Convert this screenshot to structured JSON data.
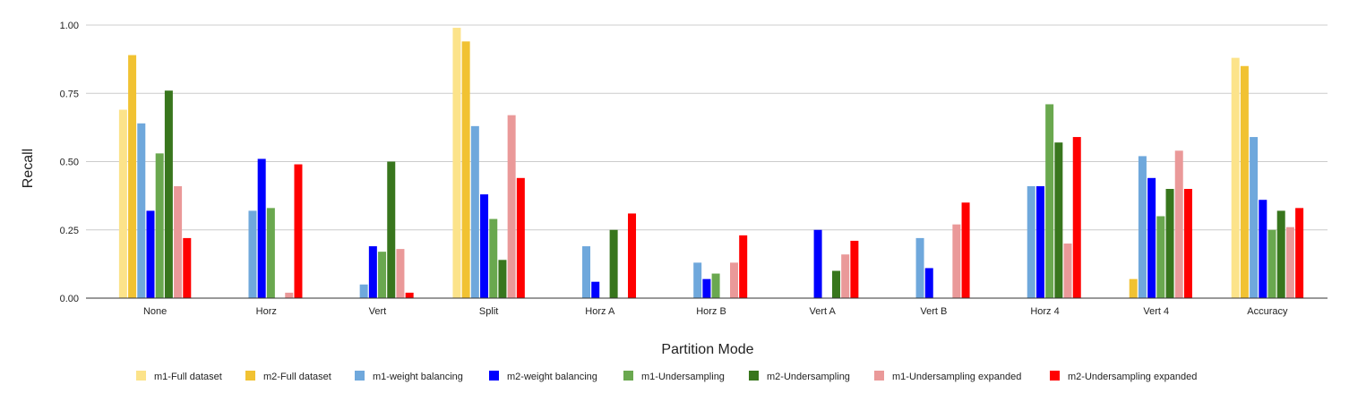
{
  "chart_data": {
    "type": "bar",
    "xlabel": "Partition Mode",
    "ylabel": "Recall",
    "ylim": [
      0,
      1
    ],
    "yticks": [
      "0.00",
      "0.25",
      "0.50",
      "0.75",
      "1.00"
    ],
    "grid": true,
    "legend_position": "bottom",
    "categories": [
      "None",
      "Horz",
      "Vert",
      "Split",
      "Horz A",
      "Horz B",
      "Vert A",
      "Vert B",
      "Horz 4",
      "Vert 4",
      "Accuracy"
    ],
    "series": [
      {
        "name": "m1-Full dataset",
        "color": "#fce38a",
        "values": [
          0.69,
          0,
          0,
          0.99,
          0,
          0,
          0,
          0,
          0,
          0,
          0.88
        ]
      },
      {
        "name": "m2-Full dataset",
        "color": "#f1c232",
        "values": [
          0.89,
          0,
          0,
          0.94,
          0,
          0,
          0,
          0,
          0,
          0.07,
          0.85
        ]
      },
      {
        "name": "m1-weight balancing",
        "color": "#6fa8dc",
        "values": [
          0.64,
          0.32,
          0.05,
          0.63,
          0.19,
          0.13,
          0,
          0.22,
          0.41,
          0.52,
          0.59
        ]
      },
      {
        "name": "m2-weight balancing",
        "color": "#0000ff",
        "values": [
          0.32,
          0.51,
          0.19,
          0.38,
          0.06,
          0.07,
          0.25,
          0.11,
          0.41,
          0.44,
          0.36
        ]
      },
      {
        "name": "m1-Undersampling",
        "color": "#6aa84f",
        "values": [
          0.53,
          0.33,
          0.17,
          0.29,
          0,
          0.09,
          0,
          0,
          0.71,
          0.3,
          0.25
        ]
      },
      {
        "name": "m2-Undersampling",
        "color": "#38761d",
        "values": [
          0.76,
          0,
          0.5,
          0.14,
          0.25,
          0,
          0.1,
          0,
          0.57,
          0.4,
          0.32
        ]
      },
      {
        "name": "m1-Undersampling expanded",
        "color": "#ea9999",
        "values": [
          0.41,
          0.02,
          0.18,
          0.67,
          0,
          0.13,
          0.16,
          0.27,
          0.2,
          0.54,
          0.26
        ]
      },
      {
        "name": "m2-Undersampling expanded",
        "color": "#ff0000",
        "values": [
          0.22,
          0.49,
          0.02,
          0.44,
          0.31,
          0.23,
          0.21,
          0.35,
          0.59,
          0.4,
          0.33
        ]
      }
    ]
  }
}
